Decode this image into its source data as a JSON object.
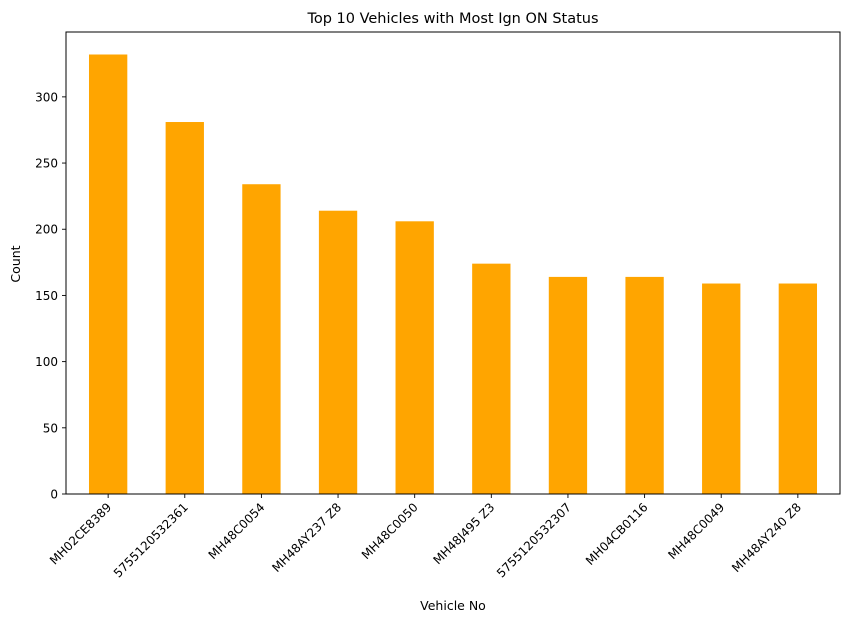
{
  "chart_data": {
    "type": "bar",
    "title": "Top 10 Vehicles with Most Ign ON Status",
    "xlabel": "Vehicle No",
    "ylabel": "Count",
    "categories": [
      "MH02CE8389",
      "575512053236​1",
      "MH48C0054",
      "MH48AY237 Z8",
      "MH48C0050",
      "MH48J495 Z3",
      "575512053230​7",
      "MH04CB0116",
      "MH48C0049",
      "MH48AY240 Z8"
    ],
    "values": [
      332,
      281,
      234,
      214,
      206,
      174,
      164,
      164,
      159,
      159
    ],
    "ylim": [
      0,
      349
    ],
    "yticks": [
      0,
      50,
      100,
      150,
      200,
      250,
      300
    ],
    "bar_color": "#ffa500",
    "grid": false,
    "legend": "none"
  }
}
